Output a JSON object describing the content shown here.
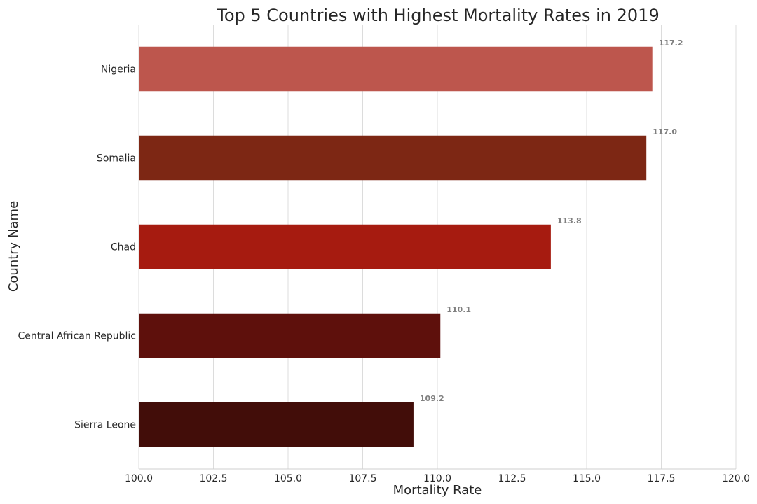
{
  "chart_data": {
    "type": "bar",
    "orientation": "horizontal",
    "title": "Top 5 Countries with Highest Mortality Rates in 2019",
    "xlabel": "Mortality Rate",
    "ylabel": "Country Name",
    "categories": [
      "Nigeria",
      "Somalia",
      "Chad",
      "Central African Republic",
      "Sierra Leone"
    ],
    "values": [
      117.2,
      117.0,
      113.8,
      110.1,
      109.2
    ],
    "data_labels": [
      "117.2",
      "117.0",
      "113.8",
      "110.1",
      "109.2"
    ],
    "colors": [
      "#bd564d",
      "#7d2714",
      "#a61b10",
      "#5e100c",
      "#420d09"
    ],
    "xlim": [
      100,
      120
    ],
    "x_ticks": [
      "100.0",
      "102.5",
      "105.0",
      "107.5",
      "110.0",
      "112.5",
      "115.0",
      "117.5",
      "120.0"
    ],
    "grid": "vertical"
  }
}
